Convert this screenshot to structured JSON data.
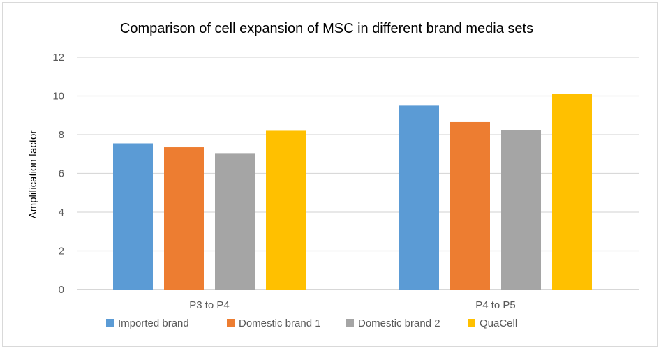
{
  "chart_data": {
    "type": "bar",
    "title": "Comparison of cell expansion of MSC in different brand media sets",
    "xlabel": "",
    "ylabel": "Amplification factor",
    "ylim": [
      0,
      12
    ],
    "yticks": [
      0,
      2,
      4,
      6,
      8,
      10,
      12
    ],
    "grid": true,
    "legend_position": "bottom",
    "categories": [
      "P3 to P4",
      "P4 to P5"
    ],
    "series": [
      {
        "name": "Imported brand",
        "color": "#5b9bd5",
        "values": [
          7.55,
          9.5
        ]
      },
      {
        "name": "Domestic brand 1",
        "color": "#ed7d31",
        "values": [
          7.35,
          8.65
        ]
      },
      {
        "name": "Domestic brand 2",
        "color": "#a5a5a5",
        "values": [
          7.05,
          8.25
        ]
      },
      {
        "name": "QuaCell",
        "color": "#ffc000",
        "values": [
          8.2,
          10.1
        ]
      }
    ]
  }
}
